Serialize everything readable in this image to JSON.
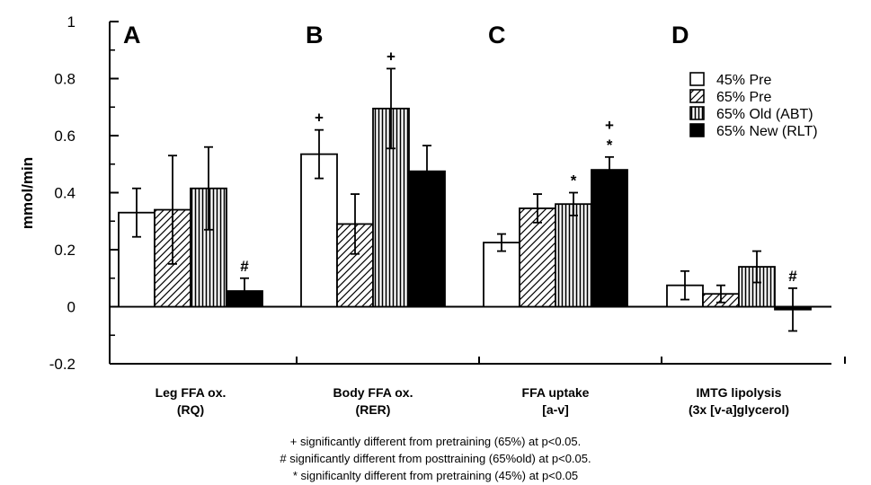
{
  "chart_data": {
    "type": "bar",
    "ylabel": "mmol/min",
    "ylim": [
      -0.2,
      1
    ],
    "yticks": [
      "-0.2",
      "0",
      "0.2",
      "0.4",
      "0.6",
      "0.8",
      "1"
    ],
    "ytick_values": [
      -0.2,
      0,
      0.2,
      0.4,
      0.6,
      0.8,
      1
    ],
    "grid": false,
    "legend_position": "top-right",
    "panels": [
      {
        "letter": "A",
        "label_line1": "Leg  FFA  ox.",
        "label_line2": "(RQ)"
      },
      {
        "letter": "B",
        "label_line1": "Body  FFA  ox.",
        "label_line2": "(RER)"
      },
      {
        "letter": "C",
        "label_line1": "FFA  uptake",
        "label_line2": "[a-v]"
      },
      {
        "letter": "D",
        "label_line1": "IMTG  lipolysis",
        "label_line2": "(3x  [v-a]glycerol)"
      }
    ],
    "series": [
      {
        "name": "45% Pre",
        "pattern": "open",
        "values": [
          0.33,
          0.535,
          0.225,
          0.075
        ],
        "errors": [
          0.085,
          0.085,
          0.03,
          0.05
        ],
        "markers": [
          "",
          "+",
          "",
          ""
        ]
      },
      {
        "name": "65% Pre",
        "pattern": "hatched",
        "values": [
          0.34,
          0.29,
          0.345,
          0.045
        ],
        "errors": [
          0.19,
          0.105,
          0.05,
          0.03
        ],
        "markers": [
          "",
          "",
          "",
          ""
        ]
      },
      {
        "name": "65% Old (ABT)",
        "pattern": "vertical-lines",
        "values": [
          0.415,
          0.695,
          0.36,
          0.14
        ],
        "errors": [
          0.145,
          0.14,
          0.04,
          0.055
        ],
        "markers": [
          "",
          "+",
          "*",
          ""
        ]
      },
      {
        "name": "65% New (RLT)",
        "pattern": "solid",
        "values": [
          0.055,
          0.475,
          0.48,
          -0.01
        ],
        "errors": [
          0.045,
          0.09,
          0.045,
          0.075
        ],
        "markers": [
          "#",
          "",
          "+\n*",
          "#"
        ]
      }
    ],
    "footnotes": [
      "+ significantly different from pretraining (65%) at p<0.05.",
      "# significantly different from posttraining (65%old) at p<0.05.",
      "* significanlty different from pretraining (45%) at p<0.05"
    ]
  }
}
